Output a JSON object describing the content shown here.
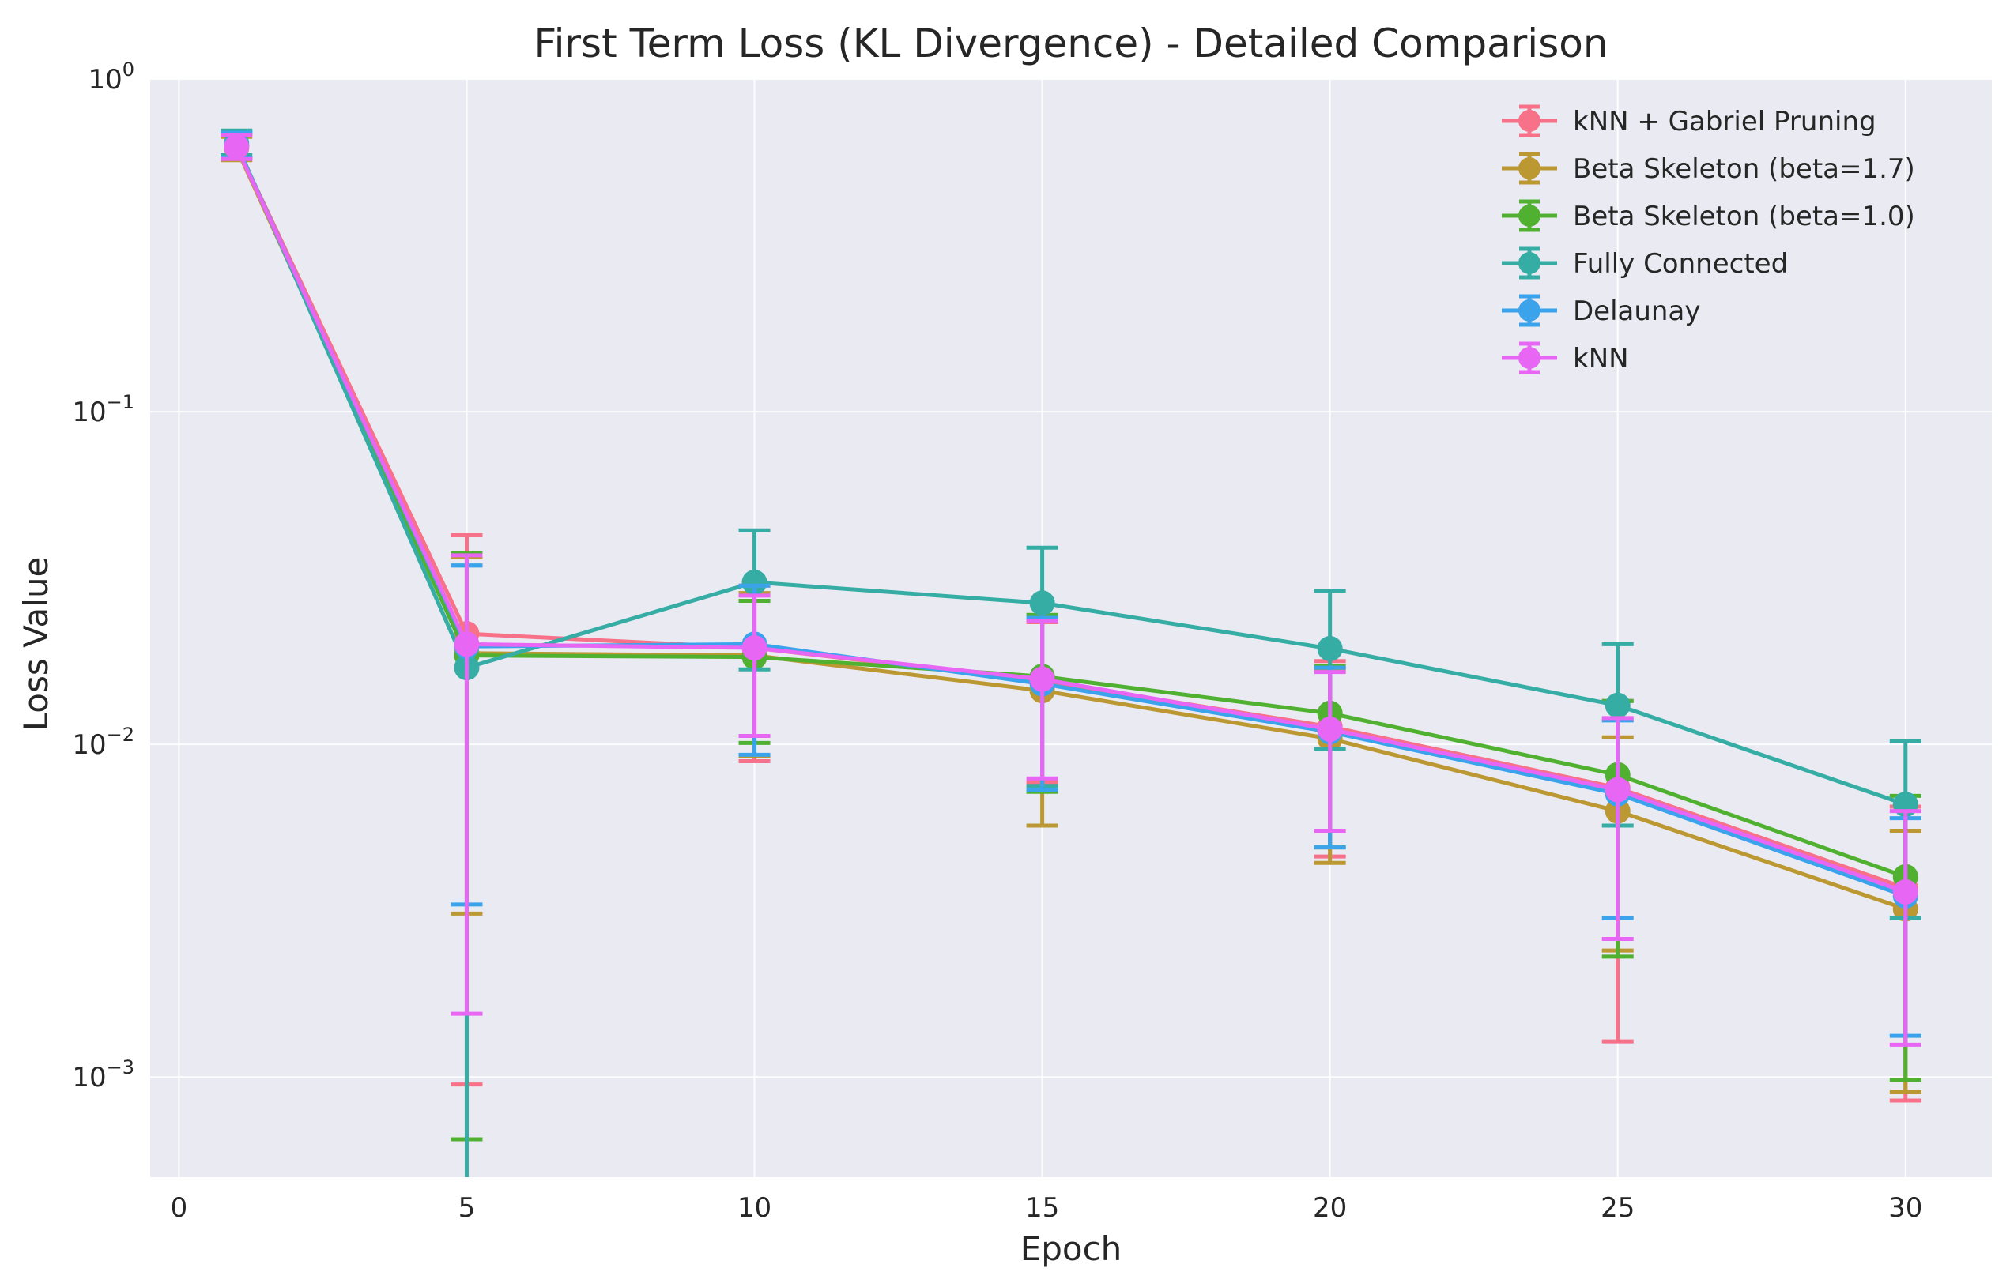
{
  "chart_data": {
    "type": "line",
    "title": "First Term Loss (KL Divergence) - Detailed Comparison",
    "xlabel": "Epoch",
    "ylabel": "Loss Value",
    "xlim": [
      -0.5,
      31.5
    ],
    "ylim": [
      0.0005,
      1.0
    ],
    "yscale": "log",
    "grid": true,
    "legend_position": "top-right",
    "background": "#eaeaf2",
    "x_ticks": [
      0,
      5,
      10,
      15,
      20,
      25,
      30
    ],
    "x_tick_labels": [
      "0",
      "5",
      "10",
      "15",
      "20",
      "25",
      "30"
    ],
    "y_ticks": [
      0.001,
      0.01,
      0.1,
      1
    ],
    "y_tick_labels": [
      {
        "base": "10",
        "exp": "−3"
      },
      {
        "base": "10",
        "exp": "−2"
      },
      {
        "base": "10",
        "exp": "−1"
      },
      {
        "base": "10",
        "exp": "0"
      }
    ],
    "x": [
      1,
      5,
      10,
      15,
      20,
      25,
      30
    ],
    "series": [
      {
        "name": "kNN + Gabriel Pruning",
        "color": "#f77189",
        "values": [
          0.63,
          0.0215,
          0.0195,
          0.0155,
          0.0113,
          0.0074,
          0.0037
        ],
        "err_low": [
          0.58,
          0.00095,
          0.0089,
          0.0077,
          0.0046,
          0.00128,
          0.00085
        ],
        "err_high": [
          0.68,
          0.0425,
          0.03,
          0.0233,
          0.0178,
          0.0135,
          0.0065
        ]
      },
      {
        "name": "Beta Skeleton (beta=1.7)",
        "color": "#bb9832",
        "values": [
          0.62,
          0.0188,
          0.0185,
          0.0145,
          0.0104,
          0.0063,
          0.0032
        ],
        "err_low": [
          0.57,
          0.0031,
          0.0092,
          0.0057,
          0.0044,
          0.0024,
          0.0009
        ],
        "err_high": [
          0.67,
          0.0365,
          0.0285,
          0.0235,
          0.0168,
          0.0105,
          0.0055
        ]
      },
      {
        "name": "Beta Skeleton (beta=1.0)",
        "color": "#50b131",
        "values": [
          0.63,
          0.0185,
          0.0183,
          0.016,
          0.0124,
          0.0081,
          0.004
        ],
        "err_low": [
          0.58,
          0.00065,
          0.0101,
          0.0072,
          0.0049,
          0.0023,
          0.00098
        ],
        "err_high": [
          0.69,
          0.0375,
          0.027,
          0.0245,
          0.0172,
          0.0135,
          0.007
        ]
      },
      {
        "name": "Fully Connected",
        "color": "#36ada4",
        "values": [
          0.64,
          0.017,
          0.0307,
          0.0266,
          0.0194,
          0.0131,
          0.0066
        ],
        "err_low": [
          0.59,
          0.00045,
          0.0168,
          0.0075,
          0.0097,
          0.0057,
          0.003
        ],
        "err_high": [
          0.7,
          0.0345,
          0.044,
          0.039,
          0.029,
          0.02,
          0.0102
        ]
      },
      {
        "name": "Delaunay",
        "color": "#3ba3ec",
        "values": [
          0.63,
          0.0197,
          0.02,
          0.0152,
          0.0109,
          0.0071,
          0.0035
        ],
        "err_low": [
          0.58,
          0.0033,
          0.0093,
          0.0073,
          0.0049,
          0.003,
          0.00133
        ],
        "err_high": [
          0.69,
          0.0345,
          0.03,
          0.024,
          0.017,
          0.0118,
          0.006
        ]
      },
      {
        "name": "kNN",
        "color": "#e866f4",
        "values": [
          0.625,
          0.02,
          0.0195,
          0.0157,
          0.0111,
          0.0073,
          0.0036
        ],
        "err_low": [
          0.575,
          0.00155,
          0.0106,
          0.0079,
          0.0055,
          0.0026,
          0.00125
        ],
        "err_high": [
          0.68,
          0.037,
          0.028,
          0.0235,
          0.0165,
          0.012,
          0.0063
        ]
      }
    ]
  }
}
